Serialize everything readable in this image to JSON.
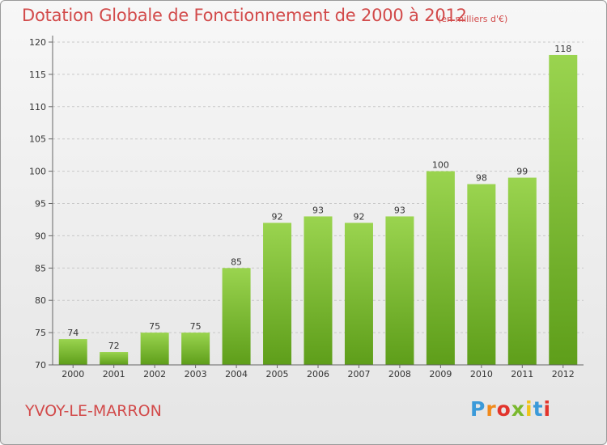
{
  "chart_data": {
    "type": "bar",
    "title": "Dotation Globale de Fonctionnement de 2000 à 2012",
    "unit_note": "(en milliers d'€)",
    "categories": [
      "2000",
      "2001",
      "2002",
      "2003",
      "2004",
      "2005",
      "2006",
      "2007",
      "2008",
      "2009",
      "2010",
      "2011",
      "2012"
    ],
    "values": [
      74,
      72,
      75,
      75,
      85,
      92,
      93,
      92,
      93,
      100,
      98,
      99,
      118
    ],
    "value_labels": [
      "74",
      "72",
      "75",
      "75",
      "85",
      "92",
      "93",
      "92",
      "93",
      "100",
      "98",
      "99",
      "118"
    ],
    "ylim": [
      70,
      120
    ],
    "yticks": [
      70,
      75,
      80,
      85,
      90,
      95,
      100,
      105,
      110,
      115,
      120
    ],
    "grid": true,
    "bar_color": "#7cbf2e"
  },
  "footer": {
    "city": "YVOY-LE-MARRON",
    "logo_letters": [
      "P",
      "r",
      "o",
      "x",
      "i",
      "t",
      "i"
    ]
  }
}
